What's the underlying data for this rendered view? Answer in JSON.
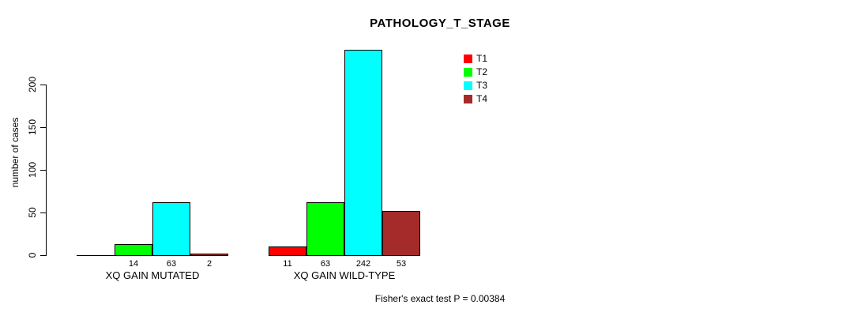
{
  "background_color": "#FFFFFF",
  "axis_color": "#000000",
  "chart_data": {
    "type": "bar",
    "title": "PATHOLOGY_T_STAGE",
    "xlabel": "",
    "ylabel": "number of cases",
    "yticks": [
      0,
      50,
      100,
      150,
      200
    ],
    "ylim": [
      0,
      242
    ],
    "axis_max": 200,
    "grid": false,
    "series": [
      {
        "name": "T1",
        "color": "#FF0000"
      },
      {
        "name": "T2",
        "color": "#00FF00"
      },
      {
        "name": "T3",
        "color": "#00FFFF"
      },
      {
        "name": "T4",
        "color": "#A52A2A"
      }
    ],
    "groups": [
      {
        "label": "XQ GAIN MUTATED",
        "values": [
          0,
          14,
          63,
          2
        ],
        "bar_labels": [
          "",
          "14",
          "63",
          "2"
        ]
      },
      {
        "label": "XQ GAIN WILD-TYPE",
        "values": [
          11,
          63,
          242,
          53
        ],
        "bar_labels": [
          "11",
          "63",
          "242",
          "53"
        ]
      }
    ],
    "legend": {
      "position": "top-right",
      "entries": [
        "T1",
        "T2",
        "T3",
        "T4"
      ]
    },
    "footnote": "Fisher's exact test P = 0.00384"
  }
}
